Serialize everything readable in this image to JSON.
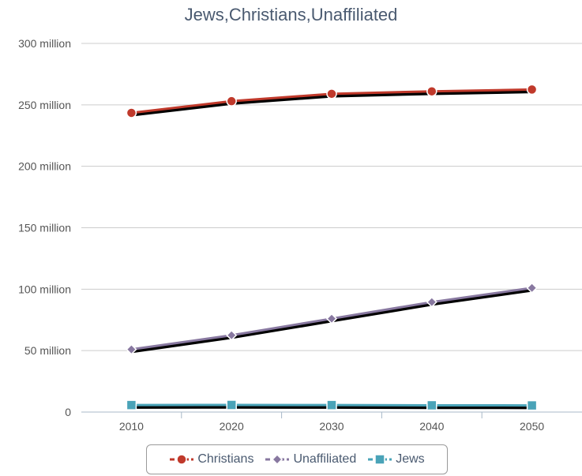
{
  "chart_data": {
    "type": "line",
    "title": "Jews,Christians,Unaffiliated",
    "categories": [
      "2010",
      "2020",
      "2030",
      "2040",
      "2050"
    ],
    "y_ticks": [
      "0",
      "50 million",
      "100 million",
      "150 million",
      "200 million",
      "250 million",
      "300 million"
    ],
    "ylim": [
      0,
      300000000
    ],
    "grid": true,
    "legend_position": "bottom",
    "series": [
      {
        "name": "Christians",
        "values": [
          243500000,
          253000000,
          259000000,
          261000000,
          262500000
        ],
        "color": "#c0392b",
        "marker": "circle"
      },
      {
        "name": "Unaffiliated",
        "values": [
          51000000,
          62500000,
          76000000,
          89500000,
          101000000
        ],
        "color": "#8878a0",
        "marker": "diamond"
      },
      {
        "name": "Jews",
        "values": [
          5700000,
          5800000,
          5700000,
          5500000,
          5400000
        ],
        "color": "#4aa3b8",
        "marker": "square"
      }
    ]
  }
}
